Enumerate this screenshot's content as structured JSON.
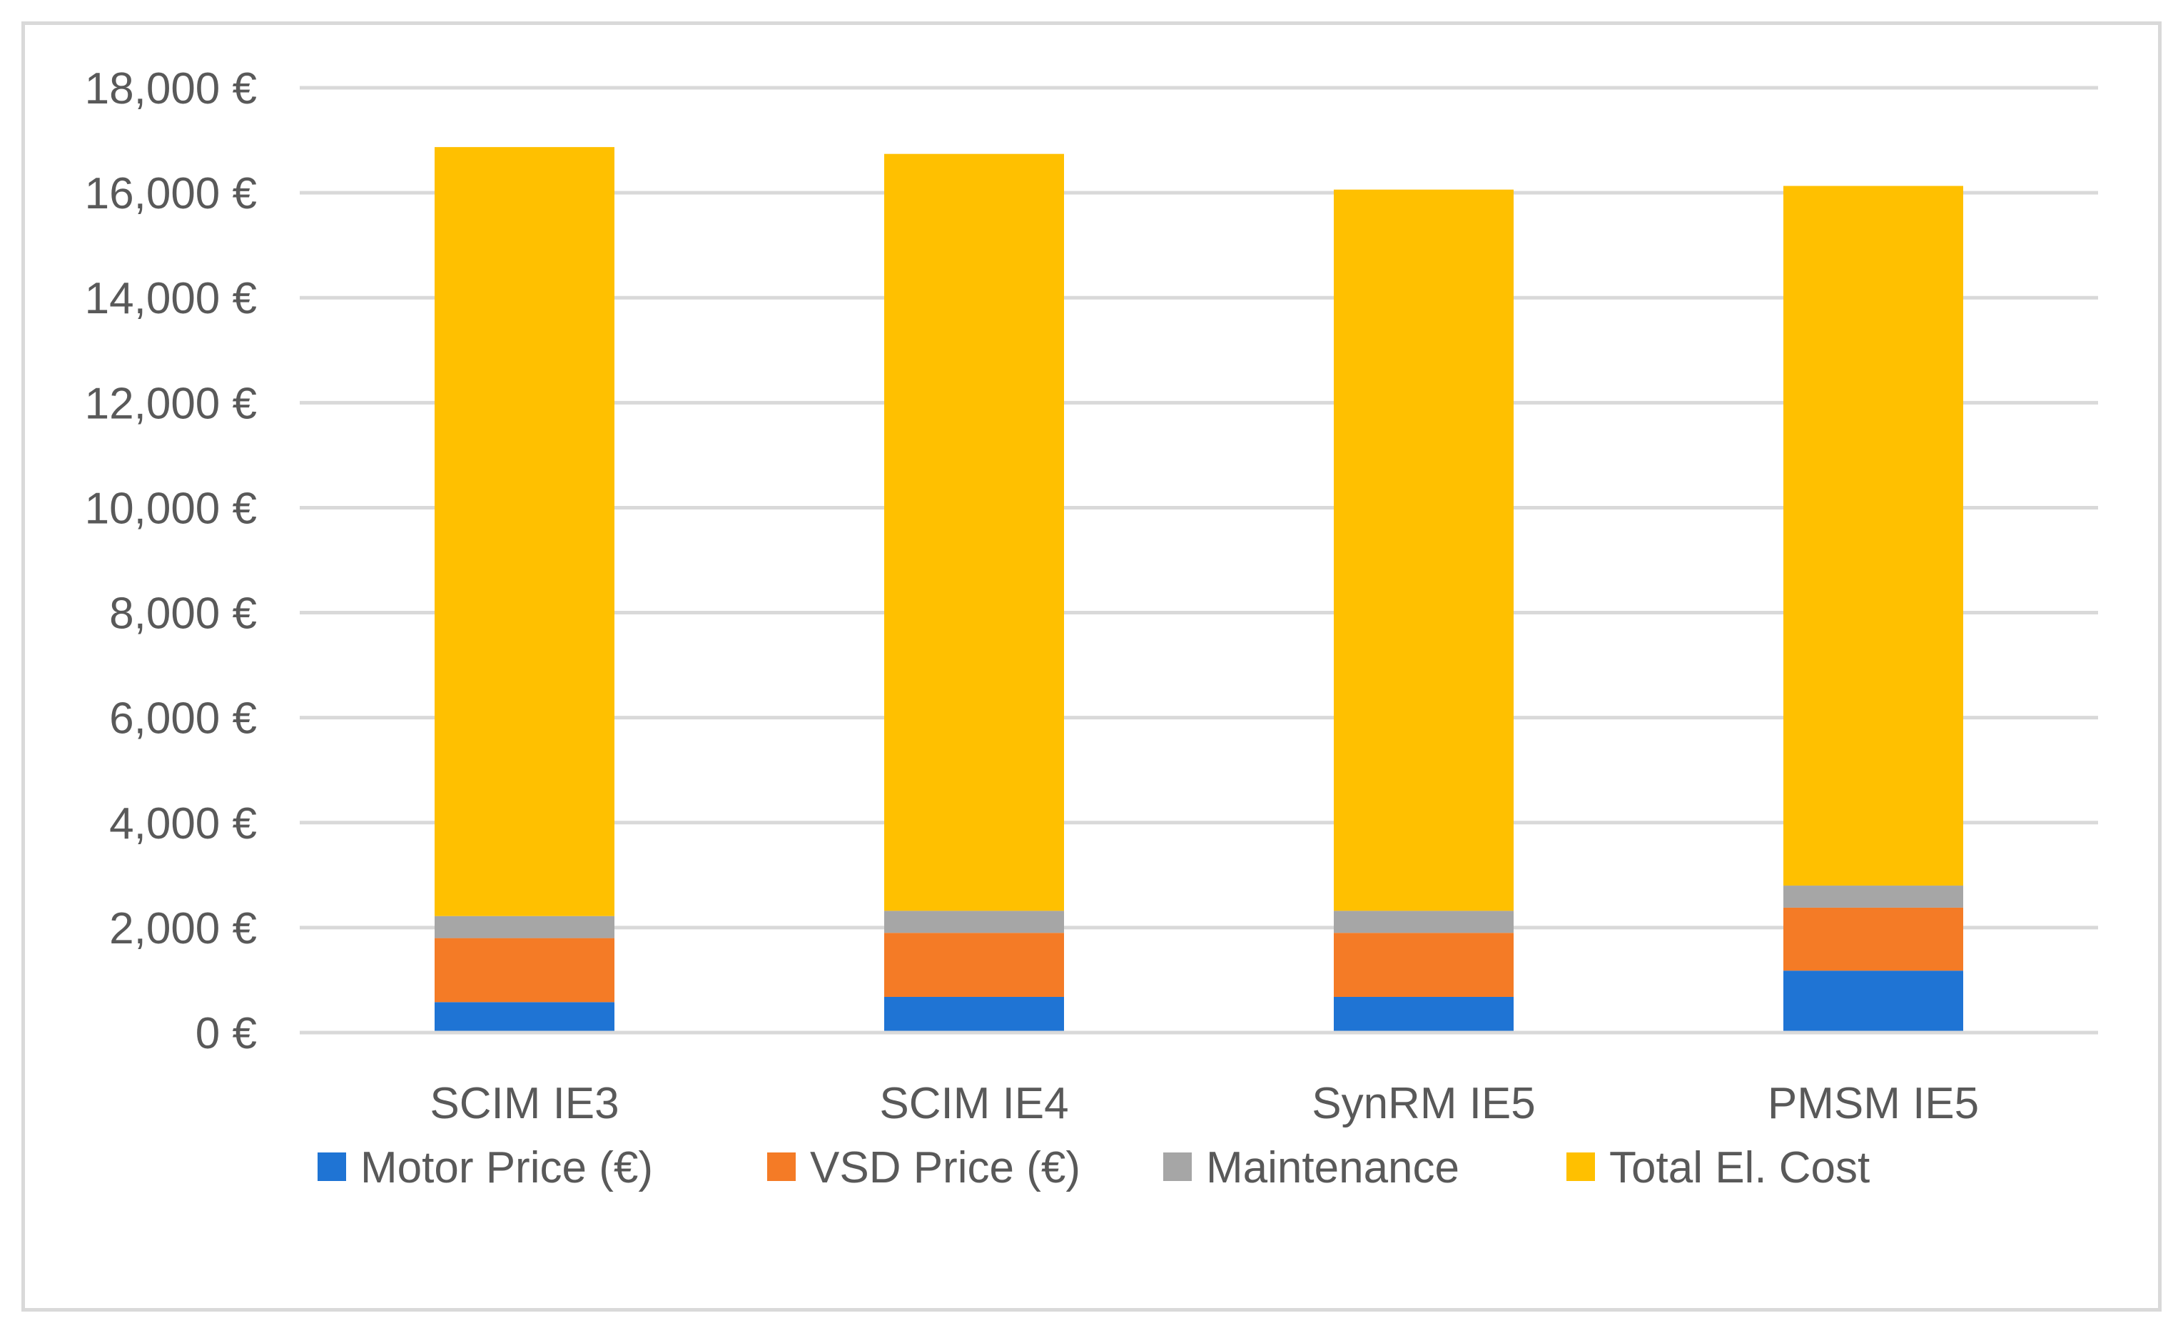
{
  "chart_data": {
    "type": "bar",
    "stacked": true,
    "title": "",
    "xlabel": "",
    "ylabel": "",
    "ylim": [
      0,
      18000
    ],
    "yticks": [
      0,
      2000,
      4000,
      6000,
      8000,
      10000,
      12000,
      14000,
      16000,
      18000
    ],
    "ytick_labels": [
      "0 €",
      "2,000 €",
      "4,000 €",
      "6,000 €",
      "8,000 €",
      "10,000 €",
      "12,000 €",
      "14,000 €",
      "16,000 €",
      "18,000 €"
    ],
    "grid": true,
    "legend_position": "bottom",
    "categories": [
      "SCIM IE3",
      "SCIM IE4",
      "SynRM IE5",
      "PMSM IE5"
    ],
    "series": [
      {
        "name": "Motor Price (€)",
        "color": "#1F74D4",
        "values": [
          580,
          680,
          680,
          1180
        ]
      },
      {
        "name": "VSD Price (€)",
        "color": "#F47B26",
        "values": [
          1220,
          1220,
          1220,
          1200
        ]
      },
      {
        "name": "Maintenance",
        "color": "#A6A6A6",
        "values": [
          420,
          420,
          420,
          420
        ]
      },
      {
        "name": "Total El. Cost",
        "color": "#FFC000",
        "values": [
          14650,
          14420,
          13740,
          13330
        ]
      }
    ]
  }
}
